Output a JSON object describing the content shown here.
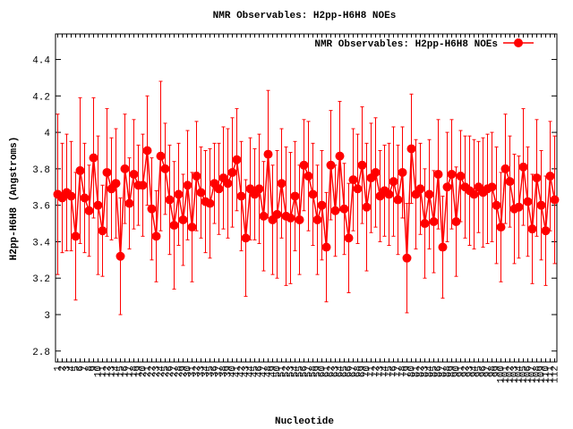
{
  "chart_data": {
    "type": "errorbar",
    "title": "NMR Observables: H2pp-H6H8 NOEs",
    "x_label": "Nucleotide",
    "y_label": "H2pp-H6H8 (Angstroms)",
    "legend_position": "top-right",
    "categories": [
      "1",
      "2",
      "3",
      "4",
      "5",
      "6",
      "7",
      "8",
      "9",
      "10",
      "11",
      "12",
      "13",
      "14",
      "15",
      "16",
      "17",
      "18",
      "19",
      "20",
      "21",
      "22",
      "23",
      "24",
      "25",
      "26",
      "27",
      "28",
      "29",
      "30",
      "31",
      "32",
      "33",
      "34",
      "35",
      "36",
      "37",
      "38",
      "39",
      "40",
      "41",
      "42",
      "43",
      "44",
      "45",
      "46",
      "47",
      "48",
      "49",
      "50",
      "51",
      "52",
      "53",
      "54",
      "55",
      "56",
      "57",
      "58",
      "59",
      "60",
      "61",
      "62",
      "63",
      "64",
      "65",
      "66",
      "67",
      "68",
      "69",
      "70",
      "71",
      "72",
      "73",
      "74",
      "75",
      "76",
      "77",
      "78",
      "79",
      "80",
      "81",
      "82",
      "83",
      "84",
      "85",
      "86",
      "87",
      "88",
      "89",
      "90",
      "91",
      "92",
      "93",
      "94",
      "95",
      "96",
      "97",
      "98",
      "99",
      "100",
      "101",
      "102",
      "103",
      "104",
      "105",
      "106",
      "107",
      "108",
      "109",
      "110",
      "111",
      "112"
    ],
    "series": [
      {
        "name": "NMR Observables: H2pp-H6H8 NOEs",
        "color": "#ff0000",
        "values": [
          3.66,
          3.64,
          3.67,
          3.65,
          3.43,
          3.79,
          3.64,
          3.57,
          3.86,
          3.6,
          3.46,
          3.78,
          3.69,
          3.72,
          3.32,
          3.8,
          3.61,
          3.77,
          3.71,
          3.71,
          3.9,
          3.58,
          3.43,
          3.87,
          3.8,
          3.63,
          3.49,
          3.66,
          3.52,
          3.71,
          3.48,
          3.76,
          3.67,
          3.62,
          3.61,
          3.72,
          3.69,
          3.75,
          3.72,
          3.78,
          3.85,
          3.65,
          3.42,
          3.69,
          3.66,
          3.69,
          3.54,
          3.88,
          3.52,
          3.55,
          3.72,
          3.54,
          3.53,
          3.65,
          3.52,
          3.82,
          3.76,
          3.66,
          3.52,
          3.6,
          3.37,
          3.82,
          3.57,
          3.87,
          3.58,
          3.42,
          3.74,
          3.69,
          3.82,
          3.59,
          3.75,
          3.78,
          3.65,
          3.68,
          3.66,
          3.73,
          3.63,
          3.78,
          3.31,
          3.91,
          3.66,
          3.69,
          3.5,
          3.66,
          3.51,
          3.77,
          3.37,
          3.7,
          3.77,
          3.51,
          3.76,
          3.7,
          3.68,
          3.66,
          3.7,
          3.67,
          3.69,
          3.7,
          3.6,
          3.48,
          3.8,
          3.73,
          3.58,
          3.59,
          3.81,
          3.62,
          3.47,
          3.75,
          3.6,
          3.46,
          3.76,
          3.63
        ],
        "errors": [
          0.44,
          0.3,
          0.32,
          0.3,
          0.35,
          0.4,
          0.3,
          0.25,
          0.33,
          0.38,
          0.25,
          0.35,
          0.28,
          0.3,
          0.32,
          0.3,
          0.25,
          0.3,
          0.22,
          0.28,
          0.3,
          0.28,
          0.25,
          0.41,
          0.25,
          0.3,
          0.35,
          0.28,
          0.25,
          0.3,
          0.3,
          0.3,
          0.25,
          0.28,
          0.3,
          0.22,
          0.25,
          0.28,
          0.3,
          0.3,
          0.28,
          0.3,
          0.32,
          0.28,
          0.25,
          0.3,
          0.3,
          0.35,
          0.3,
          0.35,
          0.3,
          0.38,
          0.36,
          0.3,
          0.3,
          0.25,
          0.3,
          0.28,
          0.3,
          0.3,
          0.3,
          0.3,
          0.25,
          0.3,
          0.25,
          0.3,
          0.28,
          0.3,
          0.32,
          0.35,
          0.3,
          0.3,
          0.25,
          0.25,
          0.28,
          0.3,
          0.3,
          0.25,
          0.3,
          0.3,
          0.3,
          0.25,
          0.3,
          0.3,
          0.28,
          0.3,
          0.28,
          0.3,
          0.3,
          0.3,
          0.25,
          0.28,
          0.3,
          0.3,
          0.25,
          0.3,
          0.3,
          0.3,
          0.32,
          0.3,
          0.3,
          0.25,
          0.3,
          0.28,
          0.32,
          0.3,
          0.3,
          0.32,
          0.3,
          0.3,
          0.3,
          0.35
        ]
      }
    ],
    "ylim": [
      2.74,
      4.54
    ],
    "yticks": [
      2.8,
      3,
      3.2,
      3.4,
      3.6,
      3.8,
      4,
      4.2,
      4.4
    ]
  }
}
